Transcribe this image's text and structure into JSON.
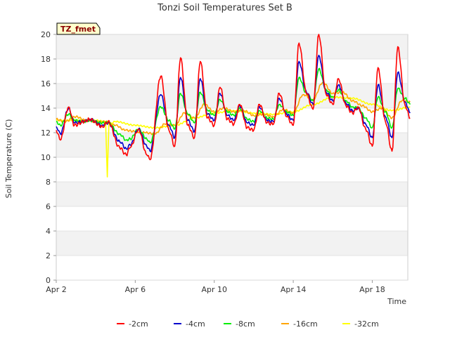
{
  "chart_data": {
    "type": "line",
    "title": "Tonzi Soil Temperatures Set B",
    "xlabel": "Time",
    "ylabel": "Soil Temperature (C)",
    "xlim": [
      "Apr 2",
      "Apr 19.8"
    ],
    "ylim": [
      0,
      20
    ],
    "x_ticks": [
      "Apr 2",
      "Apr 6",
      "Apr 10",
      "Apr 14",
      "Apr 18"
    ],
    "y_ticks": [
      0,
      2,
      4,
      6,
      8,
      10,
      12,
      14,
      16,
      18,
      20
    ],
    "grid": "banded",
    "legend_position": "bottom",
    "annotation": "TZ_fmet",
    "colors": {
      "red": "#ff0000",
      "blue": "#0000cc",
      "green": "#00ee00",
      "orange": "#ffa500",
      "yellow": "#ffff00",
      "band": "#f2f2f2",
      "annotation_bg": "#ffffcc",
      "annotation_text": "#8b0000"
    },
    "series": [
      {
        "name": "-2cm",
        "color": "#ff0000",
        "points": [
          [
            "Apr 2 00:00",
            12.2
          ],
          [
            "Apr 2 05:00",
            11.4
          ],
          [
            "Apr 2 15:00",
            14.1
          ],
          [
            "Apr 2 22:00",
            12.6
          ],
          [
            "Apr 3 10:00",
            12.9
          ],
          [
            "Apr 3 16:00",
            13.1
          ],
          [
            "Apr 4 08:00",
            12.5
          ],
          [
            "Apr 4 15:00",
            12.9
          ],
          [
            "Apr 5 05:00",
            10.8
          ],
          [
            "Apr 5 13:00",
            10.2
          ],
          [
            "Apr 5 18:00",
            10.8
          ],
          [
            "Apr 6 04:00",
            12.3
          ],
          [
            "Apr 6 14:00",
            10.2
          ],
          [
            "Apr 6 18:00",
            9.8
          ],
          [
            "Apr 7 07:00",
            16.6
          ],
          [
            "Apr 7 17:00",
            12.2
          ],
          [
            "Apr 8 00:00",
            10.9
          ],
          [
            "Apr 8 07:00",
            18.1
          ],
          [
            "Apr 8 16:00",
            12.6
          ],
          [
            "Apr 9 00:00",
            11.6
          ],
          [
            "Apr 9 07:00",
            17.8
          ],
          [
            "Apr 9 16:00",
            13.2
          ],
          [
            "Apr 10 00:00",
            12.6
          ],
          [
            "Apr 10 07:00",
            15.7
          ],
          [
            "Apr 10 16:00",
            13.1
          ],
          [
            "Apr 11 00:00",
            12.7
          ],
          [
            "Apr 11 07:00",
            14.3
          ],
          [
            "Apr 11 16:00",
            12.4
          ],
          [
            "Apr 12 00:00",
            12.2
          ],
          [
            "Apr 12 07:00",
            14.3
          ],
          [
            "Apr 12 16:00",
            12.8
          ],
          [
            "Apr 13 00:00",
            12.7
          ],
          [
            "Apr 13 07:00",
            15.2
          ],
          [
            "Apr 13 16:00",
            13.3
          ],
          [
            "Apr 14 00:00",
            12.6
          ],
          [
            "Apr 14 07:00",
            19.3
          ],
          [
            "Apr 14 16:00",
            15.2
          ],
          [
            "Apr 15 00:00",
            13.9
          ],
          [
            "Apr 15 07:00",
            20.0
          ],
          [
            "Apr 15 16:00",
            15.1
          ],
          [
            "Apr 16 00:00",
            14.3
          ],
          [
            "Apr 16 07:00",
            16.4
          ],
          [
            "Apr 16 16:00",
            14.2
          ],
          [
            "Apr 17 00:00",
            13.6
          ],
          [
            "Apr 17 07:00",
            14.1
          ],
          [
            "Apr 17 16:00",
            12.3
          ],
          [
            "Apr 18 00:00",
            10.9
          ],
          [
            "Apr 18 07:00",
            17.3
          ],
          [
            "Apr 18 16:00",
            12.9
          ],
          [
            "Apr 19 00:00",
            10.5
          ],
          [
            "Apr 19 07:00",
            19.0
          ],
          [
            "Apr 19 16:00",
            14.2
          ],
          [
            "Apr 19 22:00",
            13.2
          ]
        ]
      },
      {
        "name": "-4cm",
        "color": "#0000cc",
        "points": [
          [
            "Apr 2 00:00",
            12.5
          ],
          [
            "Apr 2 05:00",
            11.9
          ],
          [
            "Apr 2 15:00",
            14.0
          ],
          [
            "Apr 2 22:00",
            12.8
          ],
          [
            "Apr 3 10:00",
            12.9
          ],
          [
            "Apr 3 16:00",
            13.1
          ],
          [
            "Apr 4 08:00",
            12.6
          ],
          [
            "Apr 4 15:00",
            12.8
          ],
          [
            "Apr 5 05:00",
            11.3
          ],
          [
            "Apr 5 13:00",
            10.7
          ],
          [
            "Apr 5 18:00",
            11.0
          ],
          [
            "Apr 6 04:00",
            12.3
          ],
          [
            "Apr 6 14:00",
            10.9
          ],
          [
            "Apr 6 18:00",
            10.5
          ],
          [
            "Apr 7 07:00",
            15.1
          ],
          [
            "Apr 7 17:00",
            12.6
          ],
          [
            "Apr 8 00:00",
            11.6
          ],
          [
            "Apr 8 07:00",
            16.5
          ],
          [
            "Apr 8 16:00",
            13.0
          ],
          [
            "Apr 9 00:00",
            12.1
          ],
          [
            "Apr 9 07:00",
            16.4
          ],
          [
            "Apr 9 16:00",
            13.5
          ],
          [
            "Apr 10 00:00",
            13.0
          ],
          [
            "Apr 10 07:00",
            15.2
          ],
          [
            "Apr 10 16:00",
            13.4
          ],
          [
            "Apr 11 00:00",
            13.0
          ],
          [
            "Apr 11 07:00",
            14.2
          ],
          [
            "Apr 11 16:00",
            12.8
          ],
          [
            "Apr 12 00:00",
            12.6
          ],
          [
            "Apr 12 07:00",
            14.1
          ],
          [
            "Apr 12 16:00",
            13.0
          ],
          [
            "Apr 13 00:00",
            12.9
          ],
          [
            "Apr 13 07:00",
            14.8
          ],
          [
            "Apr 13 16:00",
            13.5
          ],
          [
            "Apr 14 00:00",
            13.0
          ],
          [
            "Apr 14 07:00",
            17.8
          ],
          [
            "Apr 14 16:00",
            15.3
          ],
          [
            "Apr 15 00:00",
            14.3
          ],
          [
            "Apr 15 07:00",
            18.3
          ],
          [
            "Apr 15 16:00",
            15.3
          ],
          [
            "Apr 16 00:00",
            14.6
          ],
          [
            "Apr 16 07:00",
            15.9
          ],
          [
            "Apr 16 16:00",
            14.4
          ],
          [
            "Apr 17 00:00",
            13.8
          ],
          [
            "Apr 17 07:00",
            14.0
          ],
          [
            "Apr 17 16:00",
            12.7
          ],
          [
            "Apr 18 00:00",
            11.6
          ],
          [
            "Apr 18 07:00",
            15.9
          ],
          [
            "Apr 18 16:00",
            13.3
          ],
          [
            "Apr 19 00:00",
            11.6
          ],
          [
            "Apr 19 07:00",
            16.9
          ],
          [
            "Apr 19 16:00",
            14.5
          ],
          [
            "Apr 19 22:00",
            13.6
          ]
        ]
      },
      {
        "name": "-8cm",
        "color": "#00ee00",
        "points": [
          [
            "Apr 2 00:00",
            12.9
          ],
          [
            "Apr 2 05:00",
            12.6
          ],
          [
            "Apr 2 15:00",
            13.5
          ],
          [
            "Apr 2 22:00",
            13.0
          ],
          [
            "Apr 3 10:00",
            12.9
          ],
          [
            "Apr 3 16:00",
            13.0
          ],
          [
            "Apr 4 08:00",
            12.8
          ],
          [
            "Apr 4 15:00",
            12.8
          ],
          [
            "Apr 5 05:00",
            11.9
          ],
          [
            "Apr 5 13:00",
            11.4
          ],
          [
            "Apr 5 18:00",
            11.5
          ],
          [
            "Apr 6 04:00",
            12.3
          ],
          [
            "Apr 6 14:00",
            11.5
          ],
          [
            "Apr 6 18:00",
            11.2
          ],
          [
            "Apr 7 07:00",
            14.1
          ],
          [
            "Apr 7 17:00",
            13.0
          ],
          [
            "Apr 8 00:00",
            12.3
          ],
          [
            "Apr 8 07:00",
            15.2
          ],
          [
            "Apr 8 16:00",
            13.5
          ],
          [
            "Apr 9 00:00",
            12.8
          ],
          [
            "Apr 9 07:00",
            15.3
          ],
          [
            "Apr 9 16:00",
            13.8
          ],
          [
            "Apr 10 00:00",
            13.4
          ],
          [
            "Apr 10 07:00",
            14.7
          ],
          [
            "Apr 10 16:00",
            13.7
          ],
          [
            "Apr 11 00:00",
            13.4
          ],
          [
            "Apr 11 07:00",
            14.0
          ],
          [
            "Apr 11 16:00",
            13.1
          ],
          [
            "Apr 12 00:00",
            12.9
          ],
          [
            "Apr 12 07:00",
            13.8
          ],
          [
            "Apr 12 16:00",
            13.2
          ],
          [
            "Apr 13 00:00",
            13.1
          ],
          [
            "Apr 13 07:00",
            14.3
          ],
          [
            "Apr 13 16:00",
            13.7
          ],
          [
            "Apr 14 00:00",
            13.4
          ],
          [
            "Apr 14 07:00",
            16.5
          ],
          [
            "Apr 14 16:00",
            15.2
          ],
          [
            "Apr 15 00:00",
            14.6
          ],
          [
            "Apr 15 07:00",
            17.2
          ],
          [
            "Apr 15 16:00",
            15.5
          ],
          [
            "Apr 16 00:00",
            14.9
          ],
          [
            "Apr 16 07:00",
            15.5
          ],
          [
            "Apr 16 16:00",
            14.6
          ],
          [
            "Apr 17 00:00",
            14.1
          ],
          [
            "Apr 17 07:00",
            14.0
          ],
          [
            "Apr 17 16:00",
            13.2
          ],
          [
            "Apr 18 00:00",
            12.4
          ],
          [
            "Apr 18 07:00",
            14.9
          ],
          [
            "Apr 18 16:00",
            13.7
          ],
          [
            "Apr 19 00:00",
            12.4
          ],
          [
            "Apr 19 07:00",
            15.6
          ],
          [
            "Apr 19 16:00",
            14.8
          ],
          [
            "Apr 19 22:00",
            14.3
          ]
        ]
      },
      {
        "name": "-16cm",
        "color": "#ffa500",
        "points": [
          [
            "Apr 2 00:00",
            13.1
          ],
          [
            "Apr 2 10:00",
            12.9
          ],
          [
            "Apr 3 00:00",
            13.3
          ],
          [
            "Apr 3 12:00",
            13.0
          ],
          [
            "Apr 4 00:00",
            12.9
          ],
          [
            "Apr 4 12:00",
            12.9
          ],
          [
            "Apr 5 00:00",
            12.6
          ],
          [
            "Apr 5 12:00",
            12.2
          ],
          [
            "Apr 6 00:00",
            12.1
          ],
          [
            "Apr 6 12:00",
            12.0
          ],
          [
            "Apr 7 00:00",
            11.9
          ],
          [
            "Apr 7 12:00",
            12.7
          ],
          [
            "Apr 8 00:00",
            12.6
          ],
          [
            "Apr 8 12:00",
            13.6
          ],
          [
            "Apr 9 00:00",
            13.2
          ],
          [
            "Apr 9 12:00",
            14.3
          ],
          [
            "Apr 10 00:00",
            13.7
          ],
          [
            "Apr 10 12:00",
            14.0
          ],
          [
            "Apr 11 00:00",
            13.7
          ],
          [
            "Apr 11 12:00",
            13.8
          ],
          [
            "Apr 12 00:00",
            13.4
          ],
          [
            "Apr 12 12:00",
            13.5
          ],
          [
            "Apr 13 00:00",
            13.3
          ],
          [
            "Apr 13 12:00",
            13.9
          ],
          [
            "Apr 14 00:00",
            13.6
          ],
          [
            "Apr 14 12:00",
            15.1
          ],
          [
            "Apr 15 00:00",
            14.7
          ],
          [
            "Apr 15 12:00",
            16.1
          ],
          [
            "Apr 16 00:00",
            15.2
          ],
          [
            "Apr 16 12:00",
            15.3
          ],
          [
            "Apr 17 00:00",
            14.6
          ],
          [
            "Apr 17 12:00",
            14.2
          ],
          [
            "Apr 18 00:00",
            13.7
          ],
          [
            "Apr 18 12:00",
            14.0
          ],
          [
            "Apr 19 00:00",
            13.2
          ],
          [
            "Apr 19 12:00",
            14.6
          ],
          [
            "Apr 19 22:00",
            14.5
          ]
        ]
      },
      {
        "name": "-32cm",
        "color": "#ffff00",
        "points": [
          [
            "Apr 2 00:00",
            13.0
          ],
          [
            "Apr 3 00:00",
            13.0
          ],
          [
            "Apr 4 00:00",
            13.0
          ],
          [
            "Apr 4 12:00",
            12.9
          ],
          [
            "Apr 4 14:00",
            8.4
          ],
          [
            "Apr 4 16:00",
            12.7
          ],
          [
            "Apr 5 00:00",
            12.9
          ],
          [
            "Apr 6 00:00",
            12.6
          ],
          [
            "Apr 7 00:00",
            12.4
          ],
          [
            "Apr 8 00:00",
            12.6
          ],
          [
            "Apr 9 00:00",
            13.2
          ],
          [
            "Apr 10 00:00",
            13.6
          ],
          [
            "Apr 11 00:00",
            13.8
          ],
          [
            "Apr 12 00:00",
            13.6
          ],
          [
            "Apr 13 00:00",
            13.5
          ],
          [
            "Apr 14 00:00",
            13.7
          ],
          [
            "Apr 15 00:00",
            14.3
          ],
          [
            "Apr 16 00:00",
            14.9
          ],
          [
            "Apr 17 00:00",
            14.8
          ],
          [
            "Apr 18 00:00",
            14.3
          ],
          [
            "Apr 19 00:00",
            13.8
          ],
          [
            "Apr 19 22:00",
            14.1
          ]
        ]
      }
    ]
  }
}
